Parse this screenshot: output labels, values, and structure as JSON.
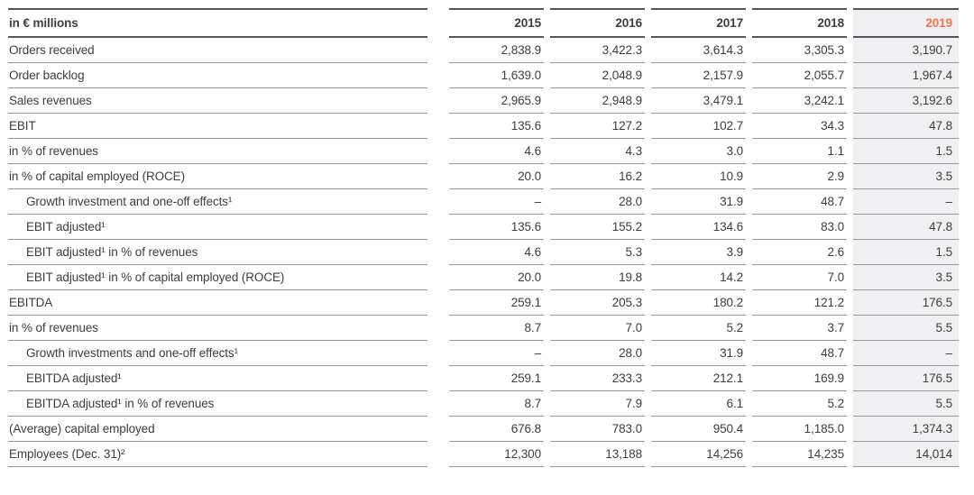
{
  "table": {
    "unit_label": "in € millions",
    "years": [
      "2015",
      "2016",
      "2017",
      "2018",
      "2019"
    ],
    "highlight_year": "2019",
    "highlight_year_color": "#ee7753",
    "highlight_column_background": "#f0eff2",
    "text_color": "#3e3e3d",
    "rows": [
      {
        "label": "Orders received",
        "indent": false,
        "values": [
          "2,838.9",
          "3,422.3",
          "3,614.3",
          "3,305.3",
          "3,190.7"
        ]
      },
      {
        "label": "Order backlog",
        "indent": false,
        "values": [
          "1,639.0",
          "2,048.9",
          "2,157.9",
          "2,055.7",
          "1,967.4"
        ]
      },
      {
        "label": "Sales revenues",
        "indent": false,
        "values": [
          "2,965.9",
          "2,948.9",
          "3,479.1",
          "3,242.1",
          "3,192.6"
        ]
      },
      {
        "label": "EBIT",
        "indent": false,
        "values": [
          "135.6",
          "127.2",
          "102.7",
          "34.3",
          "47.8"
        ]
      },
      {
        "label": "in % of revenues",
        "indent": false,
        "values": [
          "4.6",
          "4.3",
          "3.0",
          "1.1",
          "1.5"
        ]
      },
      {
        "label": "in % of capital employed (ROCE)",
        "indent": false,
        "values": [
          "20.0",
          "16.2",
          "10.9",
          "2.9",
          "3.5"
        ]
      },
      {
        "label": "Growth investment and one-off effects¹",
        "indent": true,
        "values": [
          "–",
          "28.0",
          "31.9",
          "48.7",
          "–"
        ]
      },
      {
        "label": "EBIT adjusted¹",
        "indent": true,
        "values": [
          "135.6",
          "155.2",
          "134.6",
          "83.0",
          "47.8"
        ]
      },
      {
        "label": "EBIT adjusted¹ in % of revenues",
        "indent": true,
        "values": [
          "4.6",
          "5.3",
          "3.9",
          "2.6",
          "1.5"
        ]
      },
      {
        "label": "EBIT adjusted¹ in % of capital employed (ROCE)",
        "indent": true,
        "values": [
          "20.0",
          "19.8",
          "14.2",
          "7.0",
          "3.5"
        ]
      },
      {
        "label": "EBITDA",
        "indent": false,
        "values": [
          "259.1",
          "205.3",
          "180.2",
          "121.2",
          "176.5"
        ]
      },
      {
        "label": "in % of revenues",
        "indent": false,
        "values": [
          "8.7",
          "7.0",
          "5.2",
          "3.7",
          "5.5"
        ]
      },
      {
        "label": "Growth investments and one-off effects¹",
        "indent": true,
        "values": [
          "–",
          "28.0",
          "31.9",
          "48.7",
          "–"
        ]
      },
      {
        "label": "EBITDA adjusted¹",
        "indent": true,
        "values": [
          "259.1",
          "233.3",
          "212.1",
          "169.9",
          "176.5"
        ]
      },
      {
        "label": "EBITDA adjusted¹ in % of revenues",
        "indent": true,
        "values": [
          "8.7",
          "7.9",
          "6.1",
          "5.2",
          "5.5"
        ]
      },
      {
        "label": "(Average) capital employed",
        "indent": false,
        "values": [
          "676.8",
          "783.0",
          "950.4",
          "1,185.0",
          "1,374.3"
        ]
      },
      {
        "label": "Employees (Dec. 31)²",
        "indent": false,
        "values": [
          "12,300",
          "13,188",
          "14,256",
          "14,235",
          "14,014"
        ]
      }
    ]
  }
}
